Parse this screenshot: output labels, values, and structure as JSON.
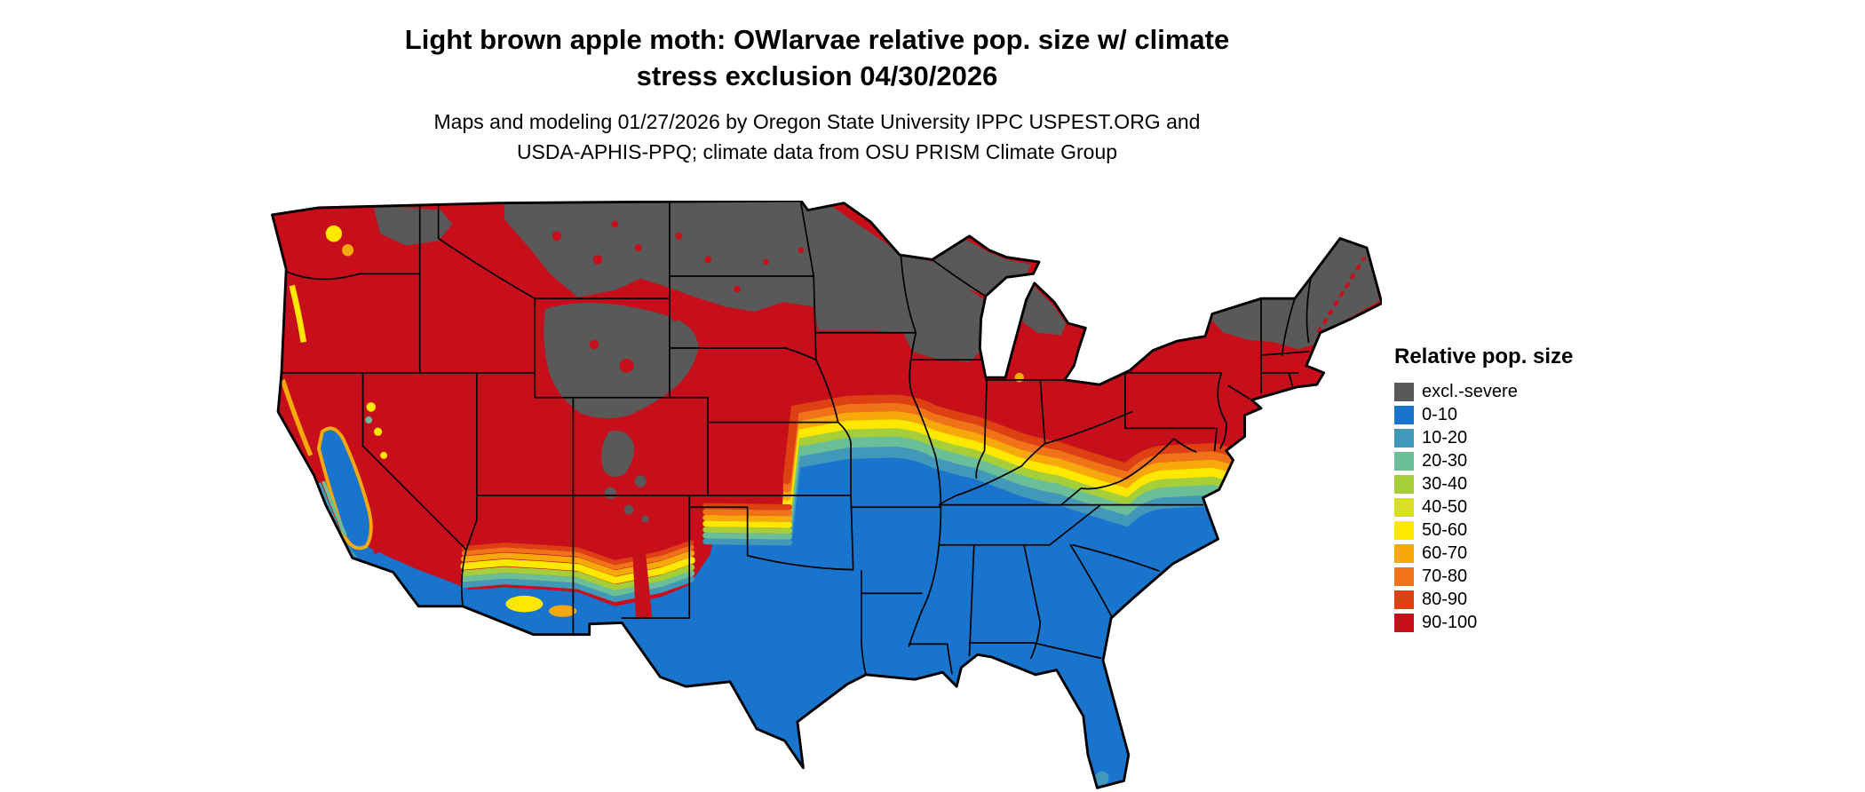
{
  "title": {
    "line1": "Light brown apple moth: OWlarvae relative pop. size w/ climate",
    "line2": "stress exclusion 04/30/2026"
  },
  "subtitle": {
    "line1": "Maps and modeling 01/27/2026 by Oregon State University IPPC USPEST.ORG and",
    "line2": "USDA-APHIS-PPQ; climate data from OSU PRISM Climate Group"
  },
  "map": {
    "region": "Contiguous United States relative population size choropleth"
  },
  "legend": {
    "title": "Relative pop. size",
    "items": [
      {
        "label": "excl.-severe",
        "color": "#595959"
      },
      {
        "label": "0-10",
        "color": "#1874cd"
      },
      {
        "label": "10-20",
        "color": "#4198b9"
      },
      {
        "label": "20-30",
        "color": "#6abf98"
      },
      {
        "label": "30-40",
        "color": "#a6ce39"
      },
      {
        "label": "40-50",
        "color": "#d9e021"
      },
      {
        "label": "50-60",
        "color": "#ffe800"
      },
      {
        "label": "60-70",
        "color": "#f7a80b"
      },
      {
        "label": "70-80",
        "color": "#f07219"
      },
      {
        "label": "80-90",
        "color": "#dd4113"
      },
      {
        "label": "90-100",
        "color": "#c60f1b"
      }
    ]
  }
}
